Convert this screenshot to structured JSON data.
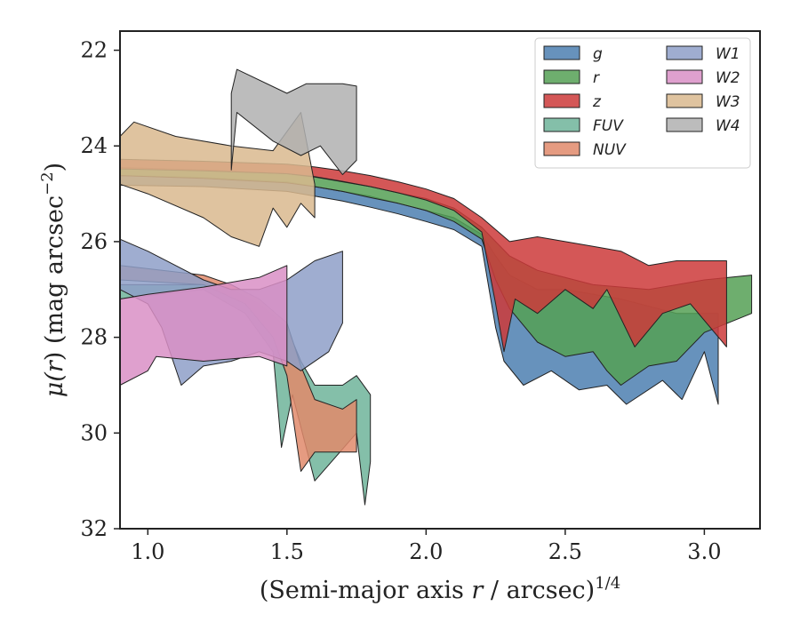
{
  "chart_data": {
    "type": "area",
    "xlabel_pre": "(Semi-major axis ",
    "xlabel_var": "r",
    "xlabel_post": " / arcsec)",
    "xlabel_sup": "1/4",
    "ylabel_pre": "μ(",
    "ylabel_var": "r",
    "ylabel_post": ") (mag arcsec",
    "ylabel_sup": "−2",
    "ylabel_end": ")",
    "xlim": [
      0.9,
      3.2
    ],
    "ylim": [
      32,
      21.6
    ],
    "y_inverted": true,
    "x_ticks": [
      1.0,
      1.5,
      2.0,
      2.5,
      3.0
    ],
    "x_tick_labels": [
      "1.0",
      "1.5",
      "2.0",
      "2.5",
      "3.0"
    ],
    "y_ticks": [
      22,
      24,
      26,
      28,
      30,
      32
    ],
    "y_tick_labels": [
      "22",
      "24",
      "26",
      "28",
      "30",
      "32"
    ],
    "legend_position": "top-right",
    "legend_columns": 2,
    "series": [
      {
        "name": "g",
        "color": "#4c7fb0",
        "upper": [
          [
            0.9,
            24.62
          ],
          [
            1.2,
            24.66
          ],
          [
            1.5,
            24.75
          ],
          [
            1.6,
            24.85
          ],
          [
            1.7,
            24.95
          ],
          [
            1.8,
            25.05
          ],
          [
            1.9,
            25.2
          ],
          [
            2.0,
            25.35
          ],
          [
            2.1,
            25.5
          ],
          [
            2.2,
            25.85
          ],
          [
            2.25,
            26.3
          ],
          [
            2.3,
            26.7
          ],
          [
            2.4,
            27.0
          ],
          [
            2.5,
            27.0
          ],
          [
            2.7,
            27.2
          ],
          [
            2.9,
            27.5
          ],
          [
            3.05,
            27.5
          ]
        ],
        "lower": [
          [
            0.9,
            24.82
          ],
          [
            1.2,
            24.85
          ],
          [
            1.5,
            24.95
          ],
          [
            1.6,
            25.05
          ],
          [
            1.7,
            25.15
          ],
          [
            1.8,
            25.28
          ],
          [
            1.9,
            25.42
          ],
          [
            2.0,
            25.58
          ],
          [
            2.1,
            25.75
          ],
          [
            2.2,
            26.1
          ],
          [
            2.25,
            27.8
          ],
          [
            2.28,
            28.5
          ],
          [
            2.35,
            29.0
          ],
          [
            2.45,
            28.7
          ],
          [
            2.55,
            29.1
          ],
          [
            2.65,
            29.0
          ],
          [
            2.72,
            29.4
          ],
          [
            2.85,
            28.9
          ],
          [
            2.92,
            29.3
          ],
          [
            3.0,
            28.3
          ],
          [
            3.05,
            29.4
          ]
        ]
      },
      {
        "name": "r",
        "color": "#55a055",
        "upper": [
          [
            0.9,
            24.45
          ],
          [
            1.2,
            24.5
          ],
          [
            1.5,
            24.58
          ],
          [
            1.6,
            24.65
          ],
          [
            1.7,
            24.75
          ],
          [
            1.8,
            24.85
          ],
          [
            1.9,
            24.98
          ],
          [
            2.0,
            25.1
          ],
          [
            2.1,
            25.3
          ],
          [
            2.2,
            25.7
          ],
          [
            2.3,
            26.3
          ],
          [
            2.4,
            26.6
          ],
          [
            2.6,
            26.9
          ],
          [
            2.8,
            27.0
          ],
          [
            3.0,
            26.8
          ],
          [
            3.17,
            26.7
          ]
        ],
        "lower": [
          [
            0.9,
            24.62
          ],
          [
            1.2,
            24.68
          ],
          [
            1.5,
            24.77
          ],
          [
            1.6,
            24.85
          ],
          [
            1.7,
            24.95
          ],
          [
            1.8,
            25.08
          ],
          [
            1.9,
            25.2
          ],
          [
            2.0,
            25.35
          ],
          [
            2.1,
            25.58
          ],
          [
            2.2,
            25.95
          ],
          [
            2.25,
            26.8
          ],
          [
            2.3,
            27.4
          ],
          [
            2.4,
            28.1
          ],
          [
            2.5,
            28.4
          ],
          [
            2.6,
            28.3
          ],
          [
            2.65,
            28.7
          ],
          [
            2.7,
            29.0
          ],
          [
            2.8,
            28.6
          ],
          [
            2.9,
            28.5
          ],
          [
            3.0,
            27.9
          ],
          [
            3.17,
            27.5
          ]
        ]
      },
      {
        "name": "z",
        "color": "#cc3a3a",
        "upper": [
          [
            0.9,
            24.28
          ],
          [
            1.2,
            24.32
          ],
          [
            1.5,
            24.38
          ],
          [
            1.6,
            24.44
          ],
          [
            1.7,
            24.52
          ],
          [
            1.8,
            24.62
          ],
          [
            1.9,
            24.75
          ],
          [
            2.0,
            24.9
          ],
          [
            2.1,
            25.1
          ],
          [
            2.2,
            25.5
          ],
          [
            2.3,
            26.0
          ],
          [
            2.4,
            25.9
          ],
          [
            2.5,
            26.0
          ],
          [
            2.6,
            26.1
          ],
          [
            2.7,
            26.2
          ],
          [
            2.8,
            26.5
          ],
          [
            2.9,
            26.4
          ],
          [
            3.08,
            26.4
          ]
        ],
        "lower": [
          [
            0.9,
            24.48
          ],
          [
            1.2,
            24.52
          ],
          [
            1.5,
            24.58
          ],
          [
            1.6,
            24.64
          ],
          [
            1.7,
            24.74
          ],
          [
            1.8,
            24.85
          ],
          [
            1.9,
            24.98
          ],
          [
            2.0,
            25.13
          ],
          [
            2.1,
            25.35
          ],
          [
            2.2,
            25.8
          ],
          [
            2.25,
            27.3
          ],
          [
            2.28,
            28.3
          ],
          [
            2.32,
            27.2
          ],
          [
            2.4,
            27.5
          ],
          [
            2.5,
            27.0
          ],
          [
            2.6,
            27.4
          ],
          [
            2.65,
            27.0
          ],
          [
            2.75,
            28.2
          ],
          [
            2.85,
            27.5
          ],
          [
            2.95,
            27.3
          ],
          [
            3.08,
            28.2
          ]
        ]
      },
      {
        "name": "FUV",
        "color": "#6fb49a",
        "upper": [
          [
            0.9,
            26.9
          ],
          [
            1.2,
            26.9
          ],
          [
            1.3,
            27.0
          ],
          [
            1.4,
            27.3
          ],
          [
            1.5,
            27.8
          ],
          [
            1.55,
            28.5
          ],
          [
            1.6,
            29.0
          ],
          [
            1.7,
            29.0
          ],
          [
            1.75,
            28.8
          ],
          [
            1.8,
            29.2
          ]
        ],
        "lower": [
          [
            0.9,
            27.2
          ],
          [
            1.2,
            27.0
          ],
          [
            1.35,
            27.5
          ],
          [
            1.45,
            28.3
          ],
          [
            1.48,
            30.3
          ],
          [
            1.52,
            29.2
          ],
          [
            1.6,
            31.0
          ],
          [
            1.75,
            30.0
          ],
          [
            1.78,
            31.5
          ],
          [
            1.8,
            30.6
          ]
        ]
      },
      {
        "name": "NUV",
        "color": "#e08a6b",
        "upper": [
          [
            0.9,
            26.5
          ],
          [
            1.2,
            26.7
          ],
          [
            1.3,
            26.9
          ],
          [
            1.4,
            27.2
          ],
          [
            1.5,
            27.7
          ],
          [
            1.55,
            28.6
          ],
          [
            1.6,
            29.3
          ],
          [
            1.7,
            29.5
          ],
          [
            1.75,
            29.3
          ]
        ],
        "lower": [
          [
            0.9,
            26.8
          ],
          [
            1.2,
            26.9
          ],
          [
            1.35,
            27.3
          ],
          [
            1.45,
            28.0
          ],
          [
            1.5,
            28.8
          ],
          [
            1.55,
            30.8
          ],
          [
            1.6,
            30.4
          ],
          [
            1.75,
            30.4
          ]
        ]
      },
      {
        "name": "W1",
        "color": "#8e9fc8",
        "upper": [
          [
            0.9,
            25.95
          ],
          [
            1.0,
            26.2
          ],
          [
            1.1,
            26.5
          ],
          [
            1.2,
            26.8
          ],
          [
            1.3,
            27.0
          ],
          [
            1.4,
            27.0
          ],
          [
            1.5,
            26.8
          ],
          [
            1.55,
            26.6
          ],
          [
            1.6,
            26.4
          ],
          [
            1.7,
            26.2
          ]
        ],
        "lower": [
          [
            0.9,
            27.0
          ],
          [
            1.0,
            27.3
          ],
          [
            1.05,
            27.8
          ],
          [
            1.12,
            29.0
          ],
          [
            1.2,
            28.6
          ],
          [
            1.3,
            28.5
          ],
          [
            1.4,
            28.3
          ],
          [
            1.5,
            28.5
          ],
          [
            1.55,
            28.7
          ],
          [
            1.65,
            28.3
          ],
          [
            1.7,
            27.7
          ]
        ]
      },
      {
        "name": "W2",
        "color": "#d98fc5",
        "upper": [
          [
            0.9,
            27.2
          ],
          [
            1.0,
            27.1
          ],
          [
            1.2,
            26.95
          ],
          [
            1.4,
            26.75
          ],
          [
            1.5,
            26.5
          ]
        ],
        "lower": [
          [
            0.9,
            29.0
          ],
          [
            1.0,
            28.7
          ],
          [
            1.03,
            28.4
          ],
          [
            1.2,
            28.5
          ],
          [
            1.4,
            28.4
          ],
          [
            1.5,
            28.6
          ]
        ]
      },
      {
        "name": "W3",
        "color": "#d9b88e",
        "upper": [
          [
            0.9,
            23.8
          ],
          [
            0.95,
            23.5
          ],
          [
            1.1,
            23.8
          ],
          [
            1.3,
            24.0
          ],
          [
            1.45,
            24.1
          ],
          [
            1.55,
            23.3
          ],
          [
            1.6,
            24.8
          ]
        ],
        "lower": [
          [
            0.9,
            24.8
          ],
          [
            1.0,
            25.0
          ],
          [
            1.2,
            25.5
          ],
          [
            1.3,
            25.9
          ],
          [
            1.4,
            26.1
          ],
          [
            1.45,
            25.3
          ],
          [
            1.5,
            25.7
          ],
          [
            1.55,
            25.2
          ],
          [
            1.6,
            25.5
          ]
        ]
      },
      {
        "name": "W4",
        "color": "#b0b0b0",
        "upper": [
          [
            1.3,
            22.9
          ],
          [
            1.32,
            22.4
          ],
          [
            1.5,
            22.9
          ],
          [
            1.57,
            22.7
          ],
          [
            1.7,
            22.7
          ],
          [
            1.75,
            22.75
          ]
        ],
        "lower": [
          [
            1.3,
            24.5
          ],
          [
            1.32,
            23.3
          ],
          [
            1.45,
            23.9
          ],
          [
            1.55,
            24.2
          ],
          [
            1.62,
            24.0
          ],
          [
            1.7,
            24.6
          ],
          [
            1.75,
            24.3
          ]
        ]
      }
    ]
  }
}
